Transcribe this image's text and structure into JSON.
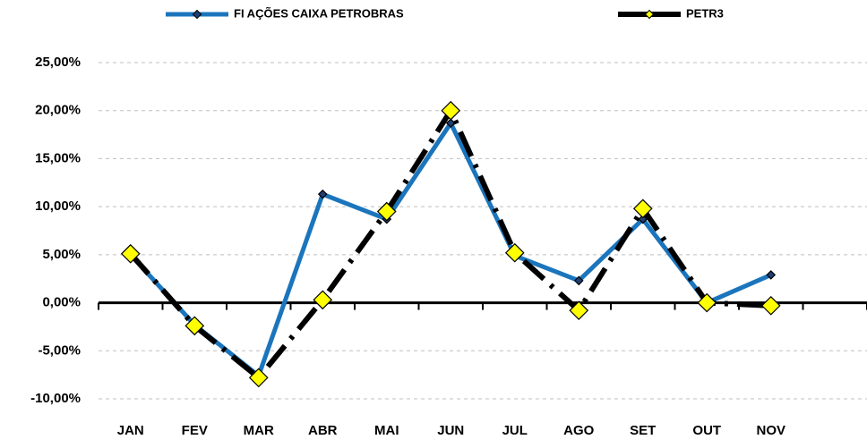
{
  "chart_data": {
    "type": "line",
    "categories": [
      "JAN",
      "FEV",
      "MAR",
      "ABR",
      "MAI",
      "JUN",
      "JUL",
      "AGO",
      "SET",
      "OUT",
      "NOV"
    ],
    "series": [
      {
        "name": "FI AÇÕES CAIXA PETROBRAS",
        "color": "#1b75bc",
        "marker_color": "#1f3f73",
        "values": [
          5.0,
          -2.3,
          -7.6,
          11.3,
          8.7,
          18.7,
          4.9,
          2.3,
          8.7,
          0.0,
          2.9
        ]
      },
      {
        "name": "PETR3",
        "color": "#000000",
        "marker_color": "#ffff00",
        "values": [
          5.1,
          -2.4,
          -7.8,
          0.3,
          9.5,
          20.0,
          5.2,
          -0.8,
          9.8,
          0.0,
          -0.3
        ]
      }
    ],
    "ylim": [
      -10,
      25
    ],
    "yticks": [
      {
        "value": -10,
        "label": "-10,00%"
      },
      {
        "value": -5,
        "label": "-5,00%"
      },
      {
        "value": 0,
        "label": "0,00%"
      },
      {
        "value": 5,
        "label": "5,00%"
      },
      {
        "value": 10,
        "label": "10,00%"
      },
      {
        "value": 15,
        "label": "15,00%"
      },
      {
        "value": 20,
        "label": "20,00%"
      },
      {
        "value": 25,
        "label": "25,00%"
      }
    ],
    "grid": true,
    "legend": "top"
  }
}
